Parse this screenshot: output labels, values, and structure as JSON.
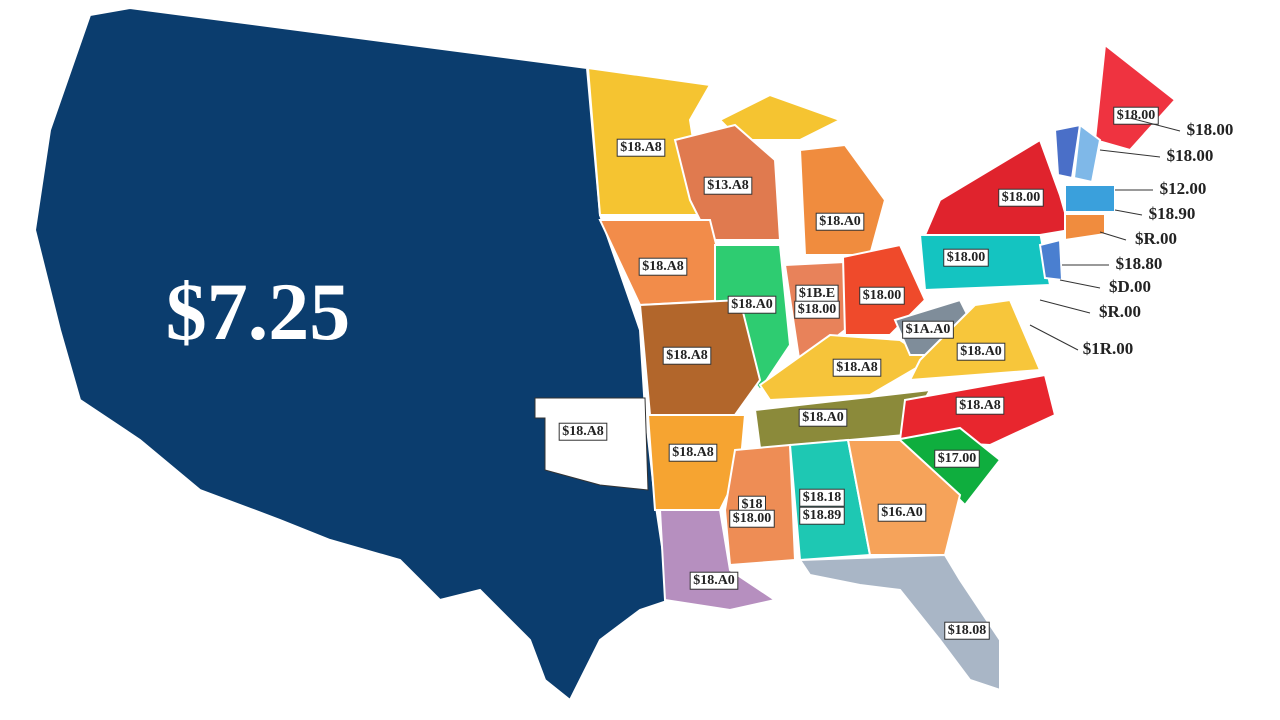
{
  "map": {
    "main_label": "$7.25",
    "state_labels": [
      "$18.A8",
      "$13.A8",
      "$18.A0",
      "$18.A8",
      "$18.A0",
      "$1B.E",
      "$18.00",
      "$18.00",
      "$18.00",
      "$18.00",
      "$18.00",
      "$18.A8",
      "$1A.A0",
      "$18.A0",
      "$18.A8",
      "$18.A0",
      "$18.A8",
      "$18.A8",
      "$18.A8",
      "$17.00",
      "$18",
      "$18.00",
      "$18.18",
      "$18.89",
      "$16.A0",
      "$18.A0",
      "$18.08"
    ],
    "callout_labels": [
      "$18.00",
      "$18.00",
      "$12.00",
      "$18.90",
      "$R.00",
      "$18.80",
      "$D.00",
      "$R.00",
      "$1R.00"
    ]
  }
}
